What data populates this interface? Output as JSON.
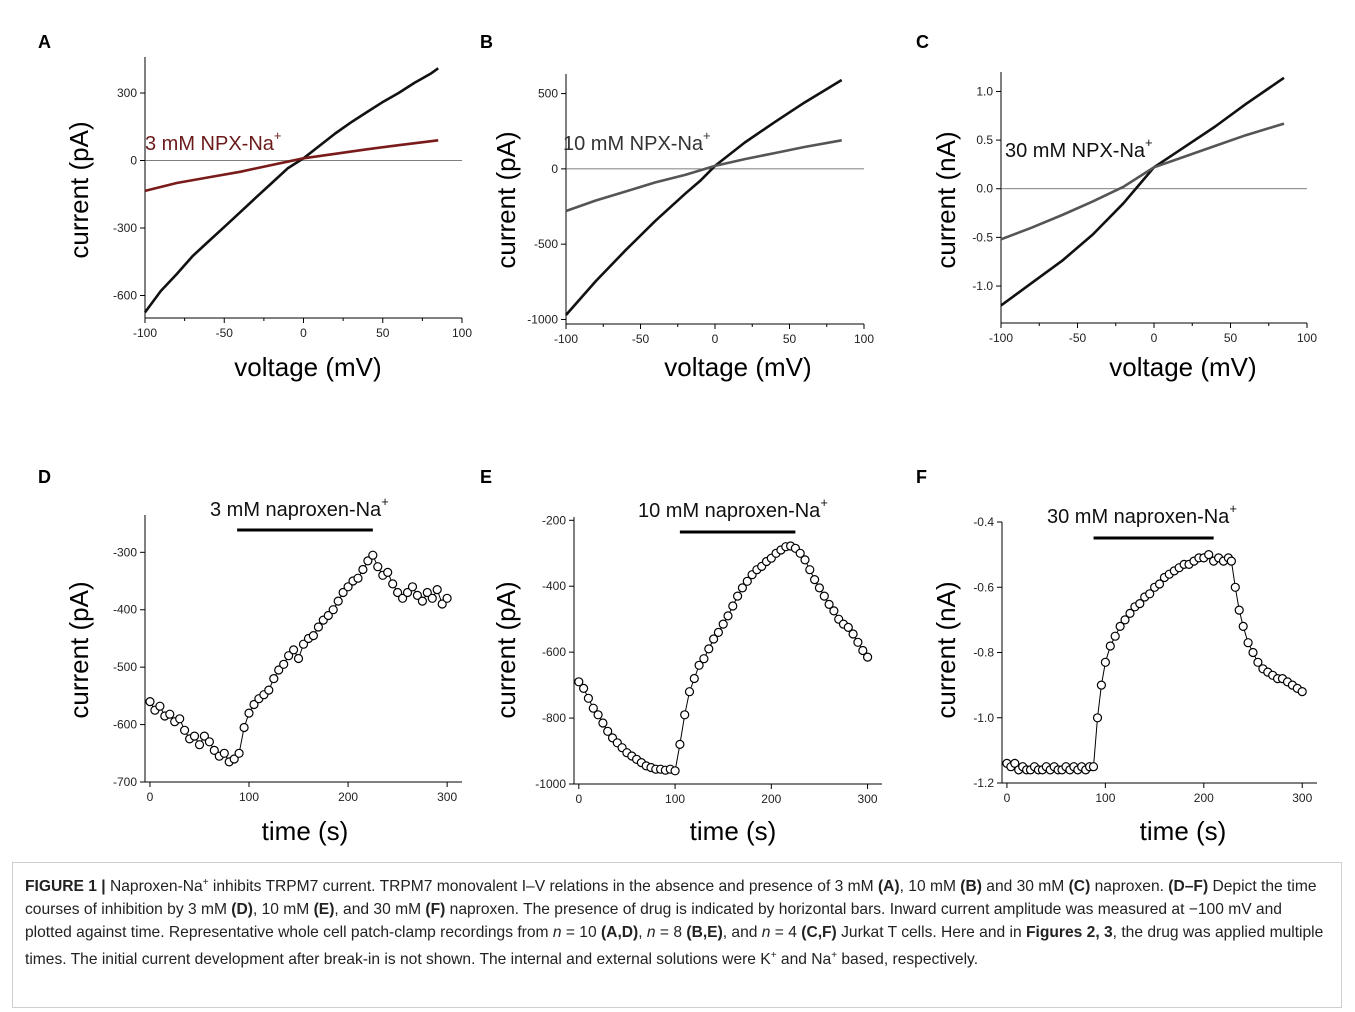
{
  "chart_data": [
    {
      "panel": "A",
      "type": "line",
      "annotation": "3 mM NPX-Na+",
      "xlabel": "voltage (mV)",
      "ylabel": "current (pA)",
      "xlim": [
        -100,
        100
      ],
      "ylim": [
        -700,
        460
      ],
      "xticks": [
        -100,
        -50,
        0,
        50,
        100
      ],
      "yticks": [
        -600,
        -300,
        0,
        300
      ],
      "series": [
        {
          "color": "#111111",
          "points": [
            [
              -100,
              -675
            ],
            [
              -90,
              -580
            ],
            [
              -80,
              -505
            ],
            [
              -70,
              -425
            ],
            [
              -60,
              -360
            ],
            [
              -50,
              -295
            ],
            [
              -40,
              -230
            ],
            [
              -30,
              -165
            ],
            [
              -20,
              -100
            ],
            [
              -10,
              -35
            ],
            [
              0,
              10
            ],
            [
              10,
              65
            ],
            [
              20,
              120
            ],
            [
              30,
              170
            ],
            [
              40,
              215
            ],
            [
              50,
              260
            ],
            [
              60,
              300
            ],
            [
              70,
              345
            ],
            [
              80,
              385
            ],
            [
              85,
              410
            ]
          ]
        },
        {
          "color": "#7a1b1b",
          "points": [
            [
              -100,
              -135
            ],
            [
              -80,
              -100
            ],
            [
              -60,
              -75
            ],
            [
              -40,
              -50
            ],
            [
              -20,
              -20
            ],
            [
              0,
              10
            ],
            [
              20,
              30
            ],
            [
              40,
              50
            ],
            [
              60,
              68
            ],
            [
              85,
              90
            ]
          ]
        }
      ]
    },
    {
      "panel": "B",
      "type": "line",
      "annotation": "10 mM NPX-Na+",
      "xlabel": "voltage (mV)",
      "ylabel": "current (pA)",
      "xlim": [
        -100,
        100
      ],
      "ylim": [
        -1030,
        630
      ],
      "xticks": [
        -100,
        -50,
        0,
        50,
        100
      ],
      "yticks": [
        -1000,
        -500,
        0,
        500
      ],
      "series": [
        {
          "color": "#111111",
          "points": [
            [
              -100,
              -970
            ],
            [
              -80,
              -745
            ],
            [
              -60,
              -540
            ],
            [
              -40,
              -345
            ],
            [
              -20,
              -165
            ],
            [
              -10,
              -80
            ],
            [
              0,
              20
            ],
            [
              20,
              175
            ],
            [
              40,
              310
            ],
            [
              60,
              440
            ],
            [
              85,
              590
            ]
          ]
        },
        {
          "color": "#555555",
          "points": [
            [
              -100,
              -280
            ],
            [
              -80,
              -210
            ],
            [
              -60,
              -150
            ],
            [
              -40,
              -90
            ],
            [
              -20,
              -40
            ],
            [
              0,
              20
            ],
            [
              20,
              65
            ],
            [
              40,
              105
            ],
            [
              60,
              145
            ],
            [
              85,
              190
            ]
          ]
        }
      ]
    },
    {
      "panel": "C",
      "type": "line",
      "annotation": "30 mM NPX-Na+",
      "xlabel": "voltage (mV)",
      "ylabel": "current (nA)",
      "xlim": [
        -100,
        100
      ],
      "ylim": [
        -1.38,
        1.2
      ],
      "xticks": [
        -100,
        -50,
        0,
        50,
        100
      ],
      "yticks": [
        -1.0,
        -0.5,
        0.0,
        0.5,
        1.0
      ],
      "series": [
        {
          "color": "#111111",
          "points": [
            [
              -100,
              -1.2
            ],
            [
              -80,
              -0.97
            ],
            [
              -60,
              -0.74
            ],
            [
              -40,
              -0.47
            ],
            [
              -20,
              -0.15
            ],
            [
              0,
              0.22
            ],
            [
              20,
              0.43
            ],
            [
              40,
              0.64
            ],
            [
              60,
              0.87
            ],
            [
              85,
              1.14
            ]
          ]
        },
        {
          "color": "#555555",
          "points": [
            [
              -100,
              -0.52
            ],
            [
              -80,
              -0.4
            ],
            [
              -60,
              -0.27
            ],
            [
              -40,
              -0.13
            ],
            [
              -20,
              0.02
            ],
            [
              0,
              0.22
            ],
            [
              20,
              0.33
            ],
            [
              40,
              0.44
            ],
            [
              60,
              0.55
            ],
            [
              85,
              0.67
            ]
          ]
        }
      ]
    },
    {
      "panel": "D",
      "type": "scatter",
      "annotation": "3 mM naproxen-Na+",
      "xlabel": "time (s)",
      "ylabel": "current (pA)",
      "xlim": [
        -5,
        315
      ],
      "ylim": [
        -700,
        -235
      ],
      "xticks": [
        0,
        100,
        200,
        300
      ],
      "yticks": [
        -700,
        -600,
        -500,
        -400,
        -300
      ],
      "drug_bar": [
        88,
        225
      ],
      "points": [
        [
          0,
          -560
        ],
        [
          5,
          -575
        ],
        [
          10,
          -568
        ],
        [
          15,
          -585
        ],
        [
          20,
          -582
        ],
        [
          25,
          -595
        ],
        [
          30,
          -590
        ],
        [
          35,
          -610
        ],
        [
          40,
          -625
        ],
        [
          45,
          -620
        ],
        [
          50,
          -635
        ],
        [
          55,
          -620
        ],
        [
          60,
          -630
        ],
        [
          65,
          -645
        ],
        [
          70,
          -655
        ],
        [
          75,
          -650
        ],
        [
          80,
          -665
        ],
        [
          85,
          -660
        ],
        [
          90,
          -650
        ],
        [
          95,
          -605
        ],
        [
          100,
          -580
        ],
        [
          105,
          -565
        ],
        [
          110,
          -555
        ],
        [
          115,
          -548
        ],
        [
          120,
          -540
        ],
        [
          125,
          -520
        ],
        [
          130,
          -505
        ],
        [
          135,
          -495
        ],
        [
          140,
          -480
        ],
        [
          145,
          -470
        ],
        [
          150,
          -485
        ],
        [
          155,
          -460
        ],
        [
          160,
          -450
        ],
        [
          165,
          -445
        ],
        [
          170,
          -430
        ],
        [
          175,
          -418
        ],
        [
          180,
          -410
        ],
        [
          185,
          -400
        ],
        [
          190,
          -385
        ],
        [
          195,
          -370
        ],
        [
          200,
          -360
        ],
        [
          205,
          -350
        ],
        [
          210,
          -345
        ],
        [
          215,
          -330
        ],
        [
          220,
          -315
        ],
        [
          225,
          -305
        ],
        [
          230,
          -325
        ],
        [
          235,
          -340
        ],
        [
          240,
          -335
        ],
        [
          245,
          -355
        ],
        [
          250,
          -370
        ],
        [
          255,
          -380
        ],
        [
          260,
          -370
        ],
        [
          265,
          -360
        ],
        [
          270,
          -375
        ],
        [
          275,
          -385
        ],
        [
          280,
          -370
        ],
        [
          285,
          -380
        ],
        [
          290,
          -365
        ],
        [
          295,
          -390
        ],
        [
          300,
          -380
        ]
      ]
    },
    {
      "panel": "E",
      "type": "scatter",
      "annotation": "10 mM naproxen-Na+",
      "xlabel": "time (s)",
      "ylabel": "current (pA)",
      "xlim": [
        -5,
        315
      ],
      "ylim": [
        -1000,
        -190
      ],
      "xticks": [
        0,
        100,
        200,
        300
      ],
      "yticks": [
        -1000,
        -800,
        -600,
        -400,
        -200
      ],
      "drug_bar": [
        105,
        225
      ],
      "points": [
        [
          0,
          -690
        ],
        [
          5,
          -710
        ],
        [
          10,
          -740
        ],
        [
          15,
          -770
        ],
        [
          20,
          -790
        ],
        [
          25,
          -815
        ],
        [
          30,
          -840
        ],
        [
          35,
          -860
        ],
        [
          40,
          -875
        ],
        [
          45,
          -890
        ],
        [
          50,
          -905
        ],
        [
          55,
          -915
        ],
        [
          60,
          -925
        ],
        [
          65,
          -935
        ],
        [
          70,
          -945
        ],
        [
          75,
          -950
        ],
        [
          80,
          -955
        ],
        [
          85,
          -955
        ],
        [
          90,
          -958
        ],
        [
          95,
          -955
        ],
        [
          100,
          -960
        ],
        [
          105,
          -880
        ],
        [
          110,
          -790
        ],
        [
          115,
          -720
        ],
        [
          120,
          -680
        ],
        [
          125,
          -640
        ],
        [
          130,
          -620
        ],
        [
          135,
          -590
        ],
        [
          140,
          -560
        ],
        [
          145,
          -540
        ],
        [
          150,
          -515
        ],
        [
          155,
          -490
        ],
        [
          160,
          -460
        ],
        [
          165,
          -430
        ],
        [
          170,
          -405
        ],
        [
          175,
          -385
        ],
        [
          180,
          -365
        ],
        [
          185,
          -350
        ],
        [
          190,
          -340
        ],
        [
          195,
          -325
        ],
        [
          200,
          -315
        ],
        [
          205,
          -300
        ],
        [
          210,
          -290
        ],
        [
          215,
          -280
        ],
        [
          220,
          -278
        ],
        [
          225,
          -285
        ],
        [
          230,
          -300
        ],
        [
          235,
          -320
        ],
        [
          240,
          -350
        ],
        [
          245,
          -380
        ],
        [
          250,
          -405
        ],
        [
          255,
          -430
        ],
        [
          260,
          -455
        ],
        [
          265,
          -475
        ],
        [
          270,
          -500
        ],
        [
          275,
          -515
        ],
        [
          280,
          -525
        ],
        [
          285,
          -545
        ],
        [
          290,
          -570
        ],
        [
          295,
          -595
        ],
        [
          300,
          -615
        ]
      ]
    },
    {
      "panel": "F",
      "type": "scatter",
      "annotation": "30 mM naproxen-Na+",
      "xlabel": "time (s)",
      "ylabel": "current (nA)",
      "xlim": [
        -5,
        315
      ],
      "ylim": [
        -1.2,
        -0.4
      ],
      "xticks": [
        0,
        100,
        200,
        300
      ],
      "yticks": [
        -1.2,
        -1.0,
        -0.8,
        -0.6,
        -0.4
      ],
      "drug_bar": [
        88,
        210
      ],
      "points": [
        [
          0,
          -1.14
        ],
        [
          4,
          -1.15
        ],
        [
          8,
          -1.14
        ],
        [
          12,
          -1.16
        ],
        [
          16,
          -1.15
        ],
        [
          20,
          -1.16
        ],
        [
          24,
          -1.16
        ],
        [
          28,
          -1.15
        ],
        [
          32,
          -1.16
        ],
        [
          36,
          -1.16
        ],
        [
          40,
          -1.15
        ],
        [
          44,
          -1.16
        ],
        [
          48,
          -1.15
        ],
        [
          52,
          -1.16
        ],
        [
          56,
          -1.16
        ],
        [
          60,
          -1.15
        ],
        [
          64,
          -1.16
        ],
        [
          68,
          -1.15
        ],
        [
          72,
          -1.16
        ],
        [
          76,
          -1.15
        ],
        [
          80,
          -1.16
        ],
        [
          84,
          -1.15
        ],
        [
          88,
          -1.15
        ],
        [
          92,
          -1.0
        ],
        [
          96,
          -0.9
        ],
        [
          100,
          -0.83
        ],
        [
          105,
          -0.78
        ],
        [
          110,
          -0.75
        ],
        [
          115,
          -0.72
        ],
        [
          120,
          -0.7
        ],
        [
          125,
          -0.68
        ],
        [
          130,
          -0.66
        ],
        [
          135,
          -0.65
        ],
        [
          140,
          -0.63
        ],
        [
          145,
          -0.62
        ],
        [
          150,
          -0.6
        ],
        [
          155,
          -0.59
        ],
        [
          160,
          -0.57
        ],
        [
          165,
          -0.56
        ],
        [
          170,
          -0.55
        ],
        [
          175,
          -0.54
        ],
        [
          180,
          -0.53
        ],
        [
          185,
          -0.53
        ],
        [
          190,
          -0.52
        ],
        [
          195,
          -0.51
        ],
        [
          200,
          -0.51
        ],
        [
          205,
          -0.5
        ],
        [
          210,
          -0.52
        ],
        [
          215,
          -0.51
        ],
        [
          220,
          -0.52
        ],
        [
          225,
          -0.51
        ],
        [
          228,
          -0.52
        ],
        [
          232,
          -0.6
        ],
        [
          236,
          -0.67
        ],
        [
          240,
          -0.72
        ],
        [
          245,
          -0.77
        ],
        [
          250,
          -0.8
        ],
        [
          255,
          -0.83
        ],
        [
          260,
          -0.85
        ],
        [
          265,
          -0.86
        ],
        [
          270,
          -0.87
        ],
        [
          275,
          -0.88
        ],
        [
          280,
          -0.88
        ],
        [
          285,
          -0.89
        ],
        [
          290,
          -0.9
        ],
        [
          295,
          -0.91
        ],
        [
          300,
          -0.92
        ]
      ]
    }
  ],
  "caption": {
    "title": "FIGURE 1 |",
    "parts": [
      {
        "t": " Naproxen-Na"
      },
      {
        "t": "+",
        "sup": true
      },
      {
        "t": " inhibits TRPM7 current. TRPM7 monovalent I–V relations in the absence and presence of 3 mM "
      },
      {
        "t": "(A)",
        "b": true
      },
      {
        "t": ", 10 mM "
      },
      {
        "t": "(B)",
        "b": true
      },
      {
        "t": " and 30 mM "
      },
      {
        "t": "(C)",
        "b": true
      },
      {
        "t": " naproxen. "
      },
      {
        "t": "(D–F)",
        "b": true
      },
      {
        "t": " Depict the time courses of inhibition by 3 mM "
      },
      {
        "t": "(D)",
        "b": true
      },
      {
        "t": ", 10 mM "
      },
      {
        "t": "(E)",
        "b": true
      },
      {
        "t": ", and 30 mM "
      },
      {
        "t": "(F)",
        "b": true
      },
      {
        "t": " naproxen. The presence of drug is indicated by horizontal bars. Inward current amplitude was measured at −100 mV and plotted against time. Representative whole cell patch-clamp recordings from "
      },
      {
        "t": "n",
        "i": true
      },
      {
        "t": " = 10 "
      },
      {
        "t": "(A,D)",
        "b": true
      },
      {
        "t": ", "
      },
      {
        "t": "n",
        "i": true
      },
      {
        "t": " = 8 "
      },
      {
        "t": "(B,E)",
        "b": true
      },
      {
        "t": ", and "
      },
      {
        "t": "n",
        "i": true
      },
      {
        "t": " = 4 "
      },
      {
        "t": "(C,F)",
        "b": true
      },
      {
        "t": " Jurkat T cells. Here and in "
      },
      {
        "t": "Figures 2, 3",
        "b": true
      },
      {
        "t": ", the drug was applied multiple times. The initial current development after break-in is not shown. The internal and external solutions were K"
      },
      {
        "t": "+",
        "sup": true
      },
      {
        "t": " and Na"
      },
      {
        "t": "+",
        "sup": true
      },
      {
        "t": " based, respectively."
      }
    ]
  }
}
